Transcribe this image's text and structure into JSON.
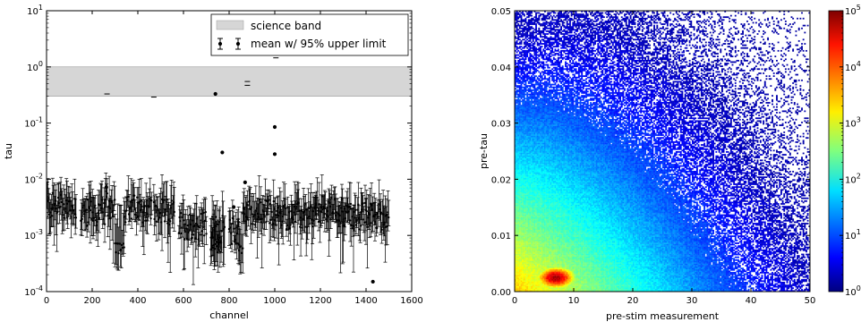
{
  "chart_data": [
    {
      "type": "scatter",
      "xlabel": "channel",
      "ylabel": "tau",
      "yscale": "log",
      "xlim": [
        0,
        1600
      ],
      "ylim": [
        0.0001,
        10
      ],
      "xticks": [
        "0",
        "200",
        "400",
        "600",
        "800",
        "1000",
        "1200",
        "1400",
        "1600"
      ],
      "yticks": [
        "10^-4",
        "10^-3",
        "10^-2",
        "10^-1",
        "10^0",
        "10^1"
      ],
      "band": {
        "name": "science band",
        "y0": 0.3,
        "y1": 1.0,
        "color": "#d6d6d6"
      },
      "legend": {
        "position": "top-right",
        "entries": [
          "science band",
          "mean w/ 95% upper limit"
        ]
      },
      "segments": [
        {
          "x0": 0,
          "x1": 130,
          "y": 0.0033
        },
        {
          "x0": 150,
          "x1": 260,
          "y": 0.0025
        },
        {
          "x0": 260,
          "x1": 300,
          "y": 0.0035
        },
        {
          "x0": 340,
          "x1": 460,
          "y": 0.003
        },
        {
          "x0": 470,
          "x1": 560,
          "y": 0.0025
        },
        {
          "x0": 580,
          "x1": 700,
          "y": 0.0015
        },
        {
          "x0": 720,
          "x1": 780,
          "y": 0.0013
        },
        {
          "x0": 800,
          "x1": 845,
          "y": 0.0012
        },
        {
          "x0": 860,
          "x1": 1000,
          "y": 0.0025
        },
        {
          "x0": 1000,
          "x1": 1180,
          "y": 0.0022
        },
        {
          "x0": 1180,
          "x1": 1300,
          "y": 0.0028
        },
        {
          "x0": 1300,
          "x1": 1400,
          "y": 0.0022
        },
        {
          "x0": 1400,
          "x1": 1500,
          "y": 0.0022
        }
      ],
      "low_clusters": [
        {
          "x0": 300,
          "x1": 340,
          "y": 0.0006
        },
        {
          "x0": 720,
          "x1": 760,
          "y": 0.0006
        },
        {
          "x0": 840,
          "x1": 860,
          "y": 0.0006
        }
      ],
      "points": [
        {
          "x": 262,
          "y": 0.0072
        },
        {
          "x": 740,
          "y": 0.33
        },
        {
          "x": 770,
          "y": 0.03
        },
        {
          "x": 820,
          "y": 0.0032
        },
        {
          "x": 870,
          "y": 0.0088
        },
        {
          "x": 1000,
          "y": 0.085
        },
        {
          "x": 1000,
          "y": 0.028
        },
        {
          "x": 1430,
          "y": 0.00015
        }
      ],
      "dashes": [
        {
          "x": 265,
          "y": 0.33
        },
        {
          "x": 470,
          "y": 0.29
        },
        {
          "x": 880,
          "y": 0.55
        },
        {
          "x": 880,
          "y": 0.47
        },
        {
          "x": 1005,
          "y": 1.45
        }
      ]
    },
    {
      "type": "heatmap",
      "xlabel": "pre-stim measurement",
      "ylabel": "pre-tau",
      "xlim": [
        0,
        50
      ],
      "ylim": [
        0,
        0.05
      ],
      "xticks": [
        "0",
        "10",
        "20",
        "30",
        "40",
        "50"
      ],
      "yticks": [
        "0.00",
        "0.01",
        "0.02",
        "0.03",
        "0.04",
        "0.05"
      ],
      "colorbar": {
        "scale": "log",
        "min": 1,
        "max": 100000,
        "ticks": [
          "10^0",
          "10^1",
          "10^2",
          "10^3",
          "10^4",
          "10^5"
        ],
        "colormap": "jet"
      },
      "peak": {
        "x": 7,
        "y": 0.0025,
        "count": 60000
      }
    }
  ]
}
